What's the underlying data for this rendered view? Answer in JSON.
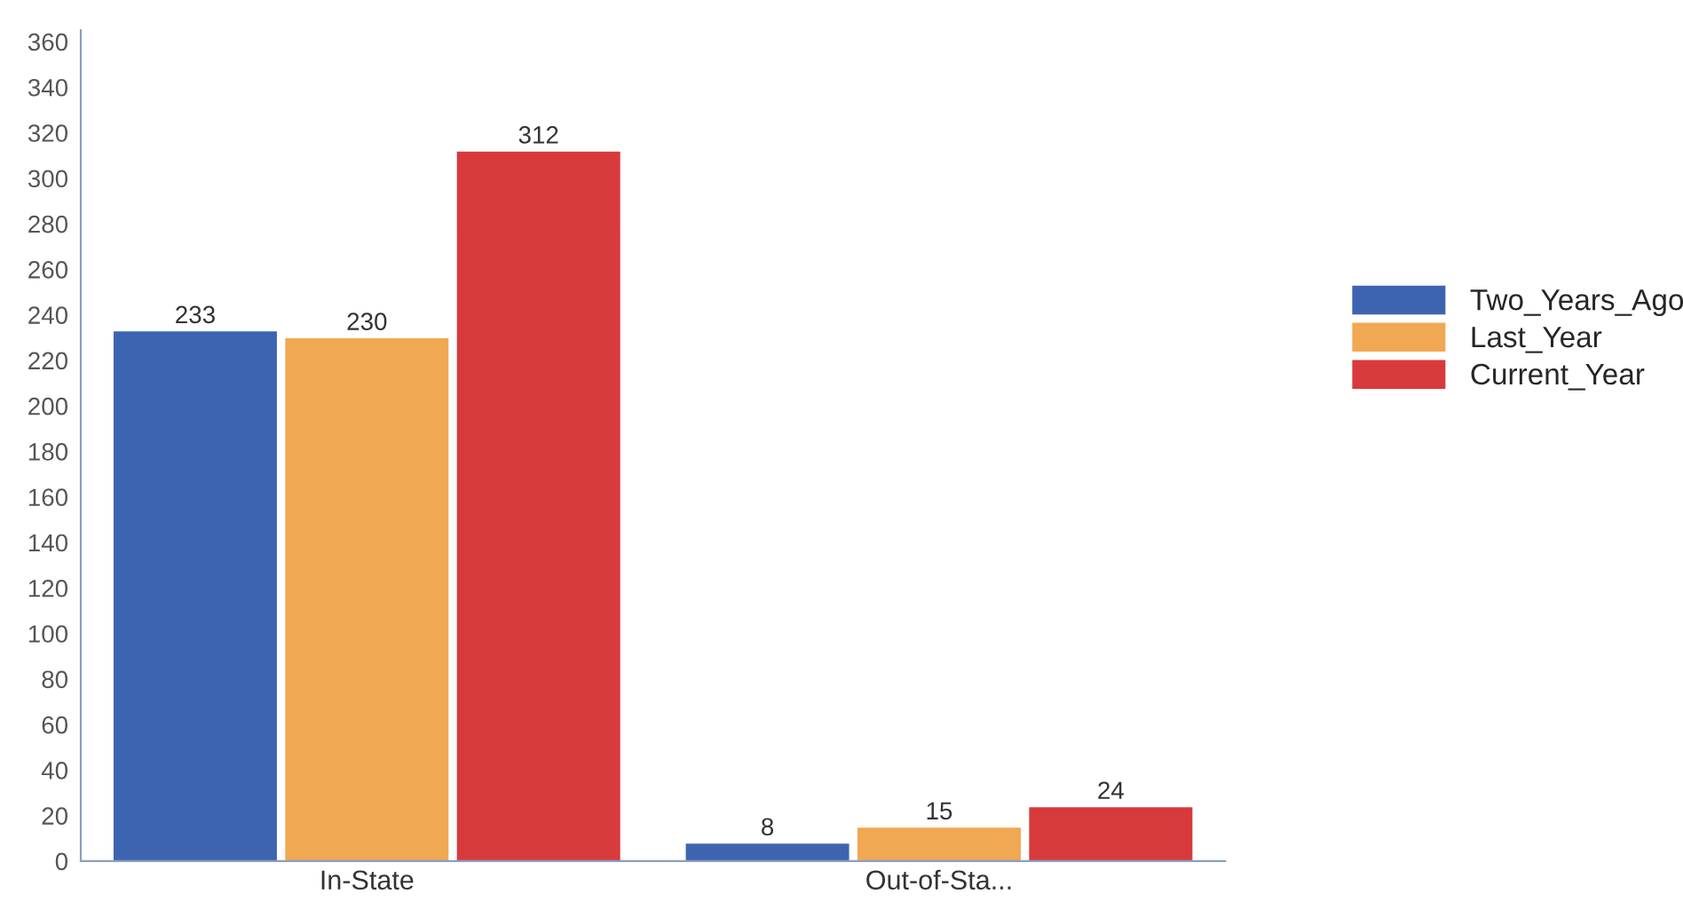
{
  "chart_data": {
    "type": "bar",
    "categories": [
      "In-State",
      "Out-of-Sta..."
    ],
    "series": [
      {
        "name": "Two_Years_Ago",
        "color": "#3d64b0",
        "values": [
          233,
          8
        ]
      },
      {
        "name": "Last_Year",
        "color": "#f0a852",
        "values": [
          230,
          15
        ]
      },
      {
        "name": "Current_Year",
        "color": "#d83a3c",
        "values": [
          312,
          24
        ]
      }
    ],
    "ylim": [
      0,
      365
    ],
    "yticks": [
      0,
      20,
      40,
      60,
      80,
      100,
      120,
      140,
      160,
      180,
      200,
      220,
      240,
      260,
      280,
      300,
      320,
      340,
      360
    ],
    "data_labels": true,
    "grid": false,
    "legend": "right"
  }
}
